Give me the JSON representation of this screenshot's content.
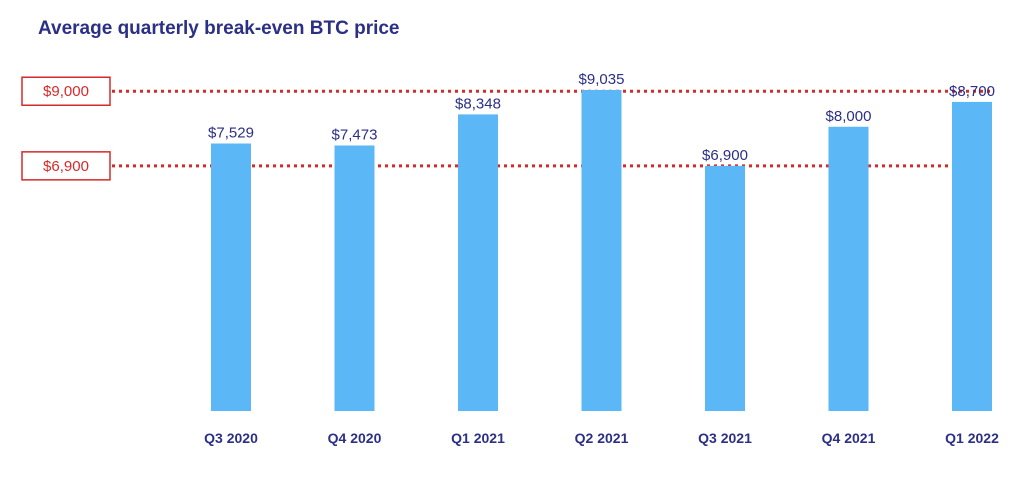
{
  "chart_data": {
    "type": "bar",
    "title": "Average quarterly break-even BTC price",
    "categories": [
      "Q3 2020",
      "Q4 2020",
      "Q1 2021",
      "Q2 2021",
      "Q3 2021",
      "Q4 2021",
      "Q1 2022"
    ],
    "values": [
      7529,
      7473,
      8348,
      9035,
      6900,
      8000,
      8700
    ],
    "data_labels": [
      "$7,529",
      "$7,473",
      "$8,348",
      "$9,035",
      "$6,900",
      "$8,000",
      "$8,700"
    ],
    "reference_lines": [
      {
        "value": 9000,
        "label": "$9,000"
      },
      {
        "value": 6900,
        "label": "$6,900"
      }
    ],
    "ylim": [
      0,
      9200
    ],
    "grid": false,
    "colors": {
      "bar": "#5bb7f5",
      "reference": "#d62a2a",
      "text": "#2b2f86"
    }
  }
}
